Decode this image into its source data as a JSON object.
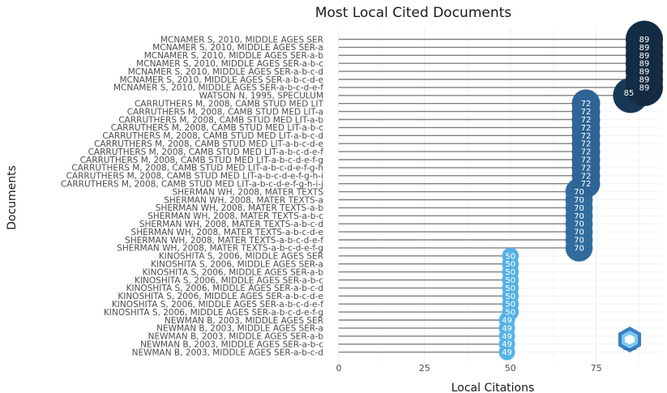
{
  "chart_data": {
    "type": "lollipop",
    "title": "Most Local Cited Documents",
    "xlabel": "Local Citations",
    "ylabel": "Documents",
    "xlim": [
      0,
      93
    ],
    "xticks": [
      0,
      25,
      50,
      75
    ],
    "color_scale": {
      "low": "#56B4E9",
      "mid": "#2E6496",
      "high": "#132B43"
    },
    "documents": [
      {
        "label": "MCNAMER S, 2010, MIDDLE AGES SER",
        "value": 89
      },
      {
        "label": "MCNAMER S, 2010, MIDDLE AGES SER-a",
        "value": 89
      },
      {
        "label": "MCNAMER S, 2010, MIDDLE AGES SER-a-b",
        "value": 89
      },
      {
        "label": "MCNAMER S, 2010, MIDDLE AGES SER-a-b-c",
        "value": 89
      },
      {
        "label": "MCNAMER S, 2010, MIDDLE AGES SER-a-b-c-d",
        "value": 89
      },
      {
        "label": "MCNAMER S, 2010, MIDDLE AGES SER-a-b-c-d-e",
        "value": 89
      },
      {
        "label": "MCNAMER S, 2010, MIDDLE AGES SER-a-b-c-d-e-f",
        "value": 89
      },
      {
        "label": "WATSON N, 1995, SPECULUM",
        "value": 85
      },
      {
        "label": "CARRUTHERS M, 2008, CAMB STUD MED LIT",
        "value": 72
      },
      {
        "label": "CARRUTHERS M, 2008, CAMB STUD MED LIT-a",
        "value": 72
      },
      {
        "label": "CARRUTHERS M, 2008, CAMB STUD MED LIT-a-b",
        "value": 72
      },
      {
        "label": "CARRUTHERS M, 2008, CAMB STUD MED LIT-a-b-c",
        "value": 72
      },
      {
        "label": "CARRUTHERS M, 2008, CAMB STUD MED LIT-a-b-c-d",
        "value": 72
      },
      {
        "label": "CARRUTHERS M, 2008, CAMB STUD MED LIT-a-b-c-d-e",
        "value": 72
      },
      {
        "label": "CARRUTHERS M, 2008, CAMB STUD MED LIT-a-b-c-d-e-f",
        "value": 72
      },
      {
        "label": "CARRUTHERS M, 2008, CAMB STUD MED LIT-a-b-c-d-e-f-g",
        "value": 72
      },
      {
        "label": "CARRUTHERS M, 2008, CAMB STUD MED LIT-a-b-c-d-e-f-g-h",
        "value": 72
      },
      {
        "label": "CARRUTHERS M, 2008, CAMB STUD MED LIT-a-b-c-d-e-f-g-h-i",
        "value": 72
      },
      {
        "label": "CARRUTHERS M, 2008, CAMB STUD MED LIT-a-b-c-d-e-f-g-h-i-j",
        "value": 72
      },
      {
        "label": "SHERMAN WH, 2008, MATER TEXTS",
        "value": 70
      },
      {
        "label": "SHERMAN WH, 2008, MATER TEXTS-a",
        "value": 70
      },
      {
        "label": "SHERMAN WH, 2008, MATER TEXTS-a-b",
        "value": 70
      },
      {
        "label": "SHERMAN WH, 2008, MATER TEXTS-a-b-c",
        "value": 70
      },
      {
        "label": "SHERMAN WH, 2008, MATER TEXTS-a-b-c-d",
        "value": 70
      },
      {
        "label": "SHERMAN WH, 2008, MATER TEXTS-a-b-c-d-e",
        "value": 70
      },
      {
        "label": "SHERMAN WH, 2008, MATER TEXTS-a-b-c-d-e-f",
        "value": 70
      },
      {
        "label": "SHERMAN WH, 2008, MATER TEXTS-a-b-c-d-e-f-g",
        "value": 70
      },
      {
        "label": "KINOSHITA S, 2006, MIDDLE AGES SER",
        "value": 50
      },
      {
        "label": "KINOSHITA S, 2006, MIDDLE AGES SER-a",
        "value": 50
      },
      {
        "label": "KINOSHITA S, 2006, MIDDLE AGES SER-a-b",
        "value": 50
      },
      {
        "label": "KINOSHITA S, 2006, MIDDLE AGES SER-a-b-c",
        "value": 50
      },
      {
        "label": "KINOSHITA S, 2006, MIDDLE AGES SER-a-b-c-d",
        "value": 50
      },
      {
        "label": "KINOSHITA S, 2006, MIDDLE AGES SER-a-b-c-d-e",
        "value": 50
      },
      {
        "label": "KINOSHITA S, 2006, MIDDLE AGES SER-a-b-c-d-e-f",
        "value": 50
      },
      {
        "label": "KINOSHITA S, 2006, MIDDLE AGES SER-a-b-c-d-e-f-g",
        "value": 50
      },
      {
        "label": "NEWMAN B, 2003, MIDDLE AGES SER",
        "value": 49
      },
      {
        "label": "NEWMAN B, 2003, MIDDLE AGES SER-a",
        "value": 49
      },
      {
        "label": "NEWMAN B, 2003, MIDDLE AGES SER-a-b",
        "value": 49
      },
      {
        "label": "NEWMAN B, 2003, MIDDLE AGES SER-a-b-c",
        "value": 49
      },
      {
        "label": "NEWMAN B, 2003, MIDDLE AGES SER-a-b-c-d",
        "value": 49
      }
    ]
  },
  "watermark": {
    "icon": "bibliometrix-logo-icon"
  }
}
